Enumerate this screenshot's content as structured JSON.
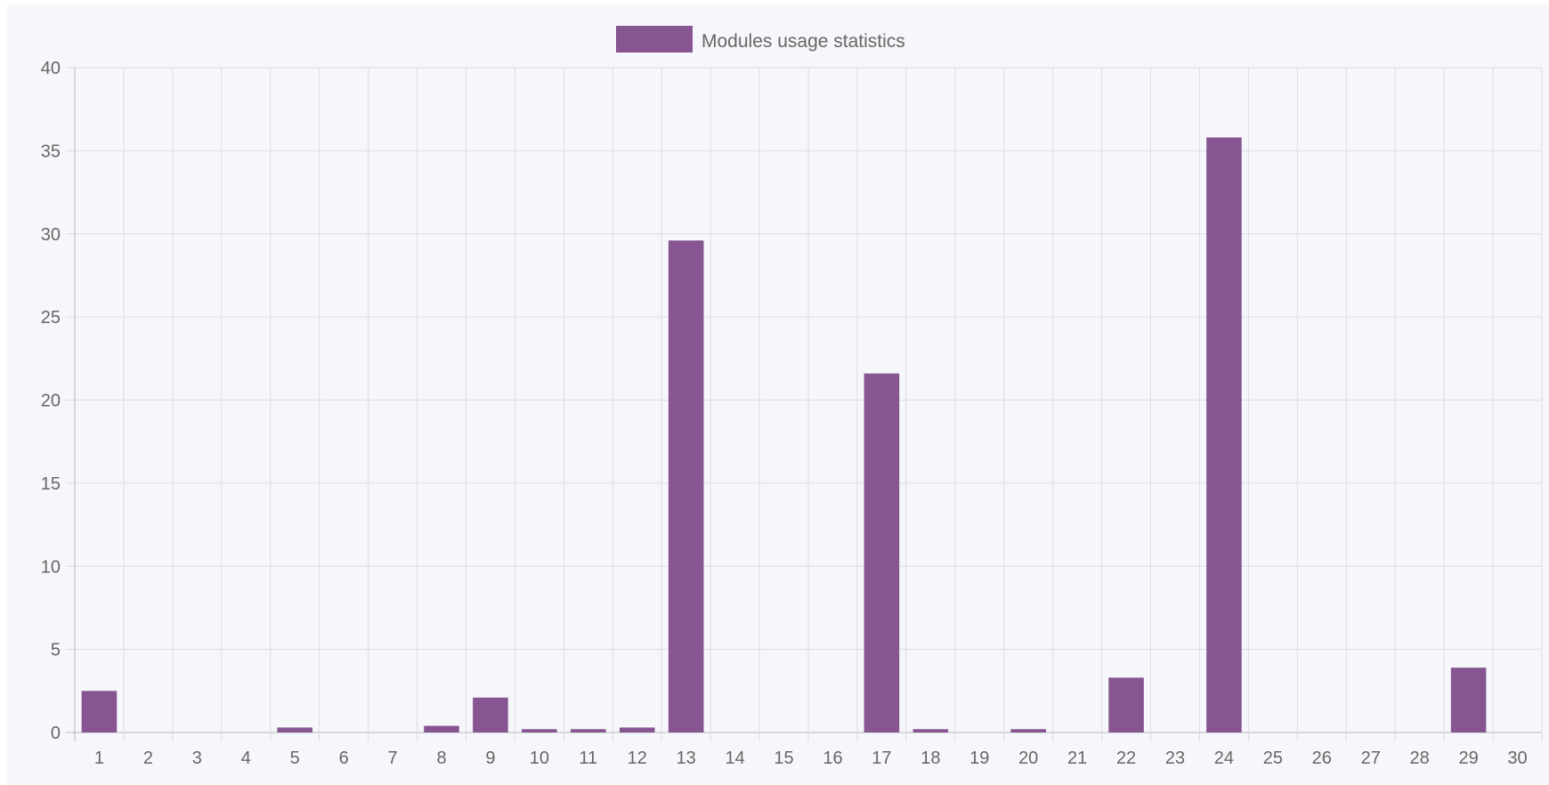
{
  "chart_data": {
    "type": "bar",
    "legend": {
      "label": "Modules usage statistics",
      "position": "top-center"
    },
    "categories": [
      "1",
      "2",
      "3",
      "4",
      "5",
      "6",
      "7",
      "8",
      "9",
      "10",
      "11",
      "12",
      "13",
      "14",
      "15",
      "16",
      "17",
      "18",
      "19",
      "20",
      "21",
      "22",
      "23",
      "24",
      "25",
      "26",
      "27",
      "28",
      "29",
      "30"
    ],
    "series": [
      {
        "name": "Modules usage statistics",
        "color": "#865592",
        "values": [
          2.5,
          0,
          0,
          0,
          0.3,
          0,
          0,
          0.4,
          2.1,
          0.2,
          0.2,
          0.3,
          29.6,
          0,
          0,
          0,
          21.6,
          0.2,
          0,
          0.2,
          0,
          3.3,
          0,
          35.8,
          0,
          0,
          0,
          0,
          3.9,
          0
        ]
      }
    ],
    "ylim": [
      0,
      40
    ],
    "yticks": [
      0,
      5,
      10,
      15,
      20,
      25,
      30,
      35,
      40
    ],
    "xlabel": "",
    "ylabel": "",
    "grid": true,
    "colors": {
      "bar": "#865592",
      "grid": "#dcdde2",
      "background": "#f6f7fa",
      "tick_text": "#666666"
    }
  }
}
